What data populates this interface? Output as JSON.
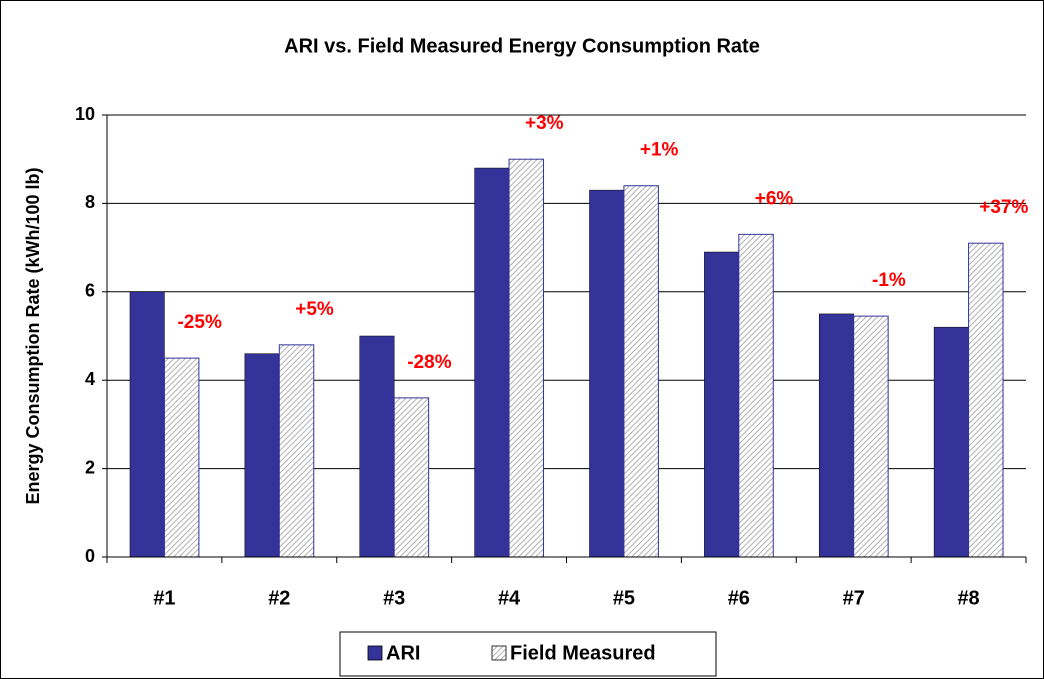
{
  "chart_data": {
    "type": "bar",
    "title": "ARI vs. Field Measured Energy Consumption Rate",
    "y_label": "Energy Consumption Rate (kWh/100 lb)",
    "categories": [
      "#1",
      "#2",
      "#3",
      "#4",
      "#5",
      "#6",
      "#7",
      "#8"
    ],
    "series": [
      {
        "name": "ARI",
        "color": "#333399",
        "values": [
          6.0,
          4.6,
          5.0,
          8.8,
          8.3,
          6.9,
          5.5,
          5.2
        ]
      },
      {
        "name": "Field Measured",
        "color": "#c8c8c8",
        "values": [
          4.5,
          4.8,
          3.6,
          9.0,
          8.4,
          7.3,
          5.45,
          7.1
        ]
      }
    ],
    "annotations": [
      "-25%",
      "+5%",
      "-28%",
      "+3%",
      "+1%",
      "+6%",
      "-1%",
      "+37%"
    ],
    "annotation_color": "#ff0000",
    "ylim": [
      0,
      10
    ],
    "yticks": [
      0,
      2,
      4,
      6,
      8,
      10
    ],
    "grid": true,
    "legend": "bottom"
  }
}
